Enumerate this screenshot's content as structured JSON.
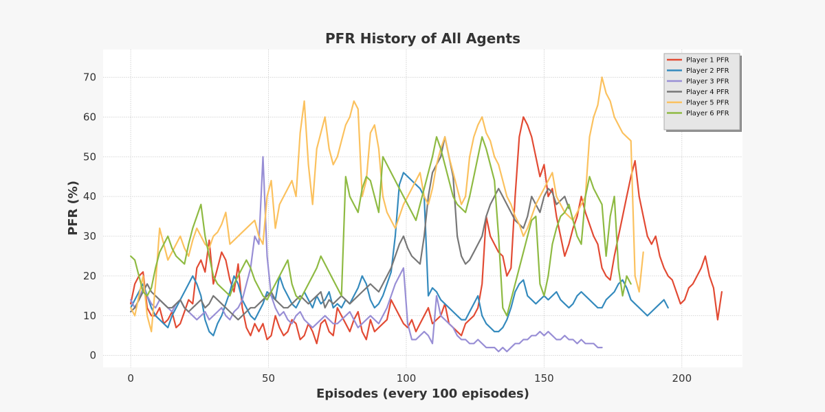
{
  "chart_data": {
    "type": "line",
    "title": "PFR History of All Agents",
    "xlabel": "Episodes (every 100 episodes)",
    "ylabel": "PFR (%)",
    "xlim": [
      -10,
      222
    ],
    "ylim": [
      -3,
      77
    ],
    "xticks": [
      0,
      50,
      100,
      150,
      200
    ],
    "yticks": [
      0,
      10,
      20,
      30,
      40,
      50,
      60,
      70
    ],
    "grid": true,
    "legend_position": "top-right",
    "x_start": 0,
    "x_step": 3,
    "series": [
      {
        "name": "Player 1 PFR",
        "color": "#E24A33",
        "values": [
          13,
          18,
          20,
          21,
          12,
          10,
          10,
          12,
          8,
          9,
          11,
          7,
          8,
          11,
          14,
          13,
          22,
          24,
          21,
          29,
          18,
          22,
          26,
          24,
          19,
          16,
          23,
          12,
          7,
          5,
          8,
          6,
          8,
          4,
          5,
          10,
          7,
          5,
          6,
          9,
          8,
          4,
          5,
          8,
          6,
          3,
          8,
          9,
          6,
          5,
          12,
          10,
          8,
          6,
          9,
          11,
          6,
          4,
          9,
          6,
          7,
          8,
          9,
          14,
          12,
          10,
          8,
          7,
          9,
          6,
          8,
          10,
          12,
          8,
          9,
          10,
          13,
          8,
          7,
          6,
          5,
          8,
          9,
          10,
          12,
          18,
          35,
          30,
          28,
          26,
          25,
          20,
          22,
          40,
          55,
          60,
          58,
          55,
          50,
          45,
          48,
          40,
          42,
          35,
          30,
          25,
          28,
          32,
          35,
          40,
          36,
          33,
          30,
          28,
          22,
          20,
          19,
          25,
          30,
          35,
          40,
          45,
          49,
          40,
          35,
          30,
          28,
          30,
          25,
          22,
          20,
          19,
          16,
          13,
          14,
          17,
          18,
          20,
          22,
          25,
          20,
          17,
          9,
          16
        ]
      },
      {
        "name": "Player 2 PFR",
        "color": "#348ABD",
        "values": [
          12,
          14,
          16,
          18,
          15,
          12,
          10,
          9,
          8,
          7,
          10,
          12,
          14,
          16,
          18,
          20,
          18,
          15,
          9,
          6,
          5,
          8,
          10,
          13,
          16,
          20,
          18,
          14,
          12,
          10,
          9,
          11,
          13,
          16,
          15,
          14,
          20,
          17,
          15,
          13,
          12,
          14,
          16,
          14,
          12,
          15,
          13,
          14,
          16,
          12,
          13,
          12,
          14,
          13,
          15,
          17,
          20,
          18,
          14,
          12,
          13,
          15,
          18,
          21,
          30,
          43,
          46,
          45,
          44,
          43,
          42,
          40,
          15,
          17,
          16,
          14,
          13,
          12,
          11,
          10,
          9,
          9,
          11,
          13,
          15,
          10,
          8,
          7,
          6,
          6,
          7,
          9,
          12,
          16,
          18,
          19,
          15,
          14,
          13,
          14,
          15,
          14,
          15,
          16,
          14,
          13,
          12,
          13,
          15,
          16,
          15,
          14,
          13,
          12,
          12,
          14,
          15,
          16,
          18,
          19,
          17,
          14,
          13,
          12,
          11,
          10,
          11,
          12,
          13,
          14,
          12
        ]
      },
      {
        "name": "Player 3 PFR",
        "color": "#988ED5",
        "values": [
          14,
          12,
          14,
          17,
          15,
          13,
          12,
          14,
          13,
          12,
          11,
          13,
          14,
          12,
          11,
          10,
          9,
          10,
          11,
          9,
          10,
          11,
          12,
          10,
          9,
          11,
          12,
          14,
          18,
          22,
          30,
          28,
          50,
          25,
          15,
          12,
          10,
          11,
          9,
          8,
          10,
          11,
          9,
          8,
          7,
          8,
          9,
          10,
          9,
          8,
          8,
          9,
          10,
          11,
          9,
          7,
          8,
          9,
          10,
          9,
          8,
          10,
          12,
          15,
          18,
          20,
          22,
          8,
          4,
          4,
          5,
          6,
          5,
          3,
          15,
          10,
          9,
          8,
          7,
          5,
          4,
          4,
          3,
          3,
          4,
          3,
          2,
          2,
          2,
          1,
          2,
          1,
          2,
          3,
          3,
          4,
          4,
          5,
          5,
          6,
          5,
          6,
          5,
          4,
          4,
          5,
          4,
          4,
          3,
          4,
          3,
          3,
          3,
          2,
          2
        ]
      },
      {
        "name": "Player 4 PFR",
        "color": "#777777",
        "values": [
          11,
          12,
          14,
          16,
          18,
          16,
          15,
          14,
          13,
          12,
          12,
          13,
          14,
          12,
          11,
          12,
          13,
          14,
          12,
          13,
          15,
          14,
          13,
          12,
          11,
          10,
          9,
          10,
          11,
          12,
          12,
          13,
          14,
          15,
          16,
          14,
          13,
          12,
          12,
          13,
          14,
          15,
          14,
          13,
          14,
          15,
          16,
          12,
          14,
          13,
          14,
          15,
          14,
          13,
          14,
          15,
          16,
          17,
          18,
          17,
          16,
          18,
          20,
          22,
          25,
          28,
          30,
          27,
          25,
          24,
          23,
          30,
          40,
          46,
          48,
          50,
          55,
          50,
          45,
          30,
          25,
          23,
          24,
          26,
          28,
          30,
          35,
          38,
          40,
          42,
          40,
          38,
          36,
          34,
          33,
          32,
          35,
          40,
          38,
          36,
          40,
          42,
          41,
          38,
          39,
          40,
          37
        ]
      },
      {
        "name": "Player 5 PFR",
        "color": "#FBC15E",
        "values": [
          12,
          10,
          15,
          20,
          10,
          6,
          18,
          32,
          28,
          24,
          26,
          28,
          30,
          27,
          25,
          29,
          32,
          30,
          28,
          27,
          30,
          31,
          33,
          36,
          28,
          29,
          30,
          31,
          32,
          33,
          34,
          30,
          28,
          40,
          44,
          32,
          38,
          40,
          42,
          44,
          40,
          56,
          64,
          48,
          38,
          52,
          56,
          60,
          52,
          48,
          50,
          54,
          58,
          60,
          64,
          62,
          40,
          44,
          56,
          58,
          52,
          40,
          36,
          34,
          32,
          35,
          38,
          40,
          42,
          44,
          46,
          40,
          38,
          42,
          48,
          52,
          55,
          50,
          46,
          42,
          38,
          40,
          50,
          55,
          58,
          60,
          56,
          54,
          50,
          48,
          44,
          40,
          38,
          35,
          33,
          30,
          32,
          35,
          38,
          40,
          42,
          44,
          46,
          40,
          38,
          36,
          35,
          34,
          36,
          38,
          40,
          55,
          60,
          63,
          70,
          66,
          64,
          60,
          58,
          56,
          55,
          54,
          20,
          16,
          26
        ]
      },
      {
        "name": "Player 6 PFR",
        "color": "#8EBA42",
        "values": [
          25,
          24,
          20,
          16,
          15,
          17,
          22,
          26,
          28,
          30,
          27,
          25,
          24,
          23,
          28,
          32,
          35,
          38,
          30,
          25,
          20,
          18,
          17,
          16,
          15,
          18,
          20,
          22,
          24,
          22,
          19,
          17,
          15,
          14,
          16,
          18,
          20,
          22,
          24,
          18,
          15,
          14,
          16,
          18,
          20,
          22,
          25,
          23,
          21,
          19,
          17,
          15,
          45,
          40,
          38,
          36,
          42,
          45,
          44,
          40,
          36,
          50,
          48,
          46,
          44,
          42,
          40,
          38,
          36,
          34,
          38,
          42,
          46,
          50,
          55,
          52,
          48,
          44,
          40,
          38,
          37,
          36,
          40,
          45,
          50,
          55,
          52,
          48,
          44,
          30,
          12,
          10,
          14,
          18,
          22,
          26,
          30,
          34,
          35,
          18,
          15,
          20,
          28,
          32,
          35,
          36,
          38,
          34,
          30,
          28,
          40,
          45,
          42,
          40,
          38,
          25,
          35,
          40,
          22,
          15,
          20,
          18
        ]
      }
    ]
  }
}
